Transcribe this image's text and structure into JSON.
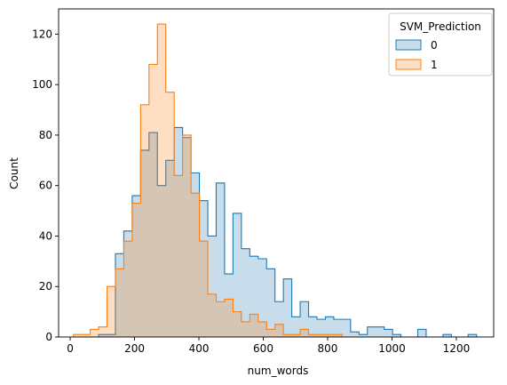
{
  "chart_data": {
    "type": "histogram",
    "xlabel": "num_words",
    "ylabel": "Count",
    "xlim": [
      -36,
      1316
    ],
    "ylim": [
      0,
      130
    ],
    "grid": false,
    "x_ticks": [
      0,
      200,
      400,
      600,
      800,
      1000,
      1200
    ],
    "y_ticks": [
      0,
      20,
      40,
      60,
      80,
      100,
      120
    ],
    "legend": {
      "title": "SVM_Prediction",
      "placement": "top-right"
    },
    "bin_edges_start": 10,
    "bin_width": 26.1,
    "series": [
      {
        "name": "0",
        "color": "#1f77b4",
        "fill": "#c6dbef",
        "values": [
          0,
          0,
          0,
          1,
          1,
          33,
          42,
          56,
          74,
          81,
          60,
          70,
          83,
          79,
          65,
          54,
          40,
          61,
          25,
          49,
          35,
          32,
          31,
          27,
          14,
          23,
          8,
          14,
          8,
          7,
          8,
          7,
          7,
          2,
          1,
          4,
          4,
          3,
          1,
          0,
          0,
          3,
          0,
          0,
          1,
          0,
          0,
          1
        ]
      },
      {
        "name": "1",
        "color": "#ff7f0e",
        "fill": "#ffd8b8",
        "values": [
          1,
          1,
          3,
          4,
          20,
          27,
          38,
          53,
          92,
          108,
          124,
          97,
          64,
          80,
          57,
          38,
          17,
          14,
          15,
          10,
          6,
          9,
          6,
          3,
          5,
          1,
          1,
          3,
          1,
          1,
          1,
          1,
          0,
          0,
          0,
          0,
          0,
          0,
          0,
          0,
          0,
          0,
          0,
          0,
          0,
          0,
          0,
          0
        ]
      }
    ]
  }
}
